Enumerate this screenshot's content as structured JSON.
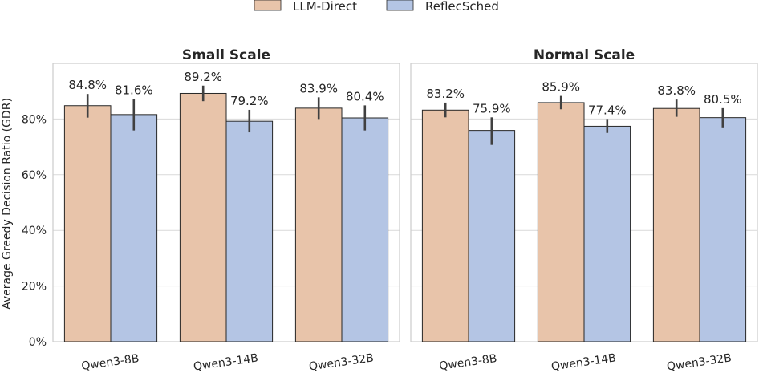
{
  "legend": {
    "items": [
      {
        "label": "LLM-Direct",
        "color": "#e8c4aa"
      },
      {
        "label": "ReflecSched",
        "color": "#b4c5e4"
      }
    ]
  },
  "chart_data": [
    {
      "type": "bar",
      "title": "Small Scale",
      "xlabel": "",
      "ylabel": "Average Greedy Decision Ratio (GDR)",
      "ylim": [
        0,
        100
      ],
      "yticks": [
        0,
        20,
        40,
        60,
        80
      ],
      "ytick_labels": [
        "0%",
        "20%",
        "40%",
        "60%",
        "80%"
      ],
      "grid": true,
      "legend_position": "top-center",
      "categories": [
        "Qwen3-8B",
        "Qwen3-14B",
        "Qwen3-32B"
      ],
      "series": [
        {
          "name": "LLM-Direct",
          "values": [
            84.8,
            89.2,
            83.9
          ],
          "err_low": [
            80.5,
            86.4,
            80.0
          ],
          "err_high": [
            89.0,
            92.0,
            87.8
          ],
          "labels": [
            "84.8%",
            "89.2%",
            "83.9%"
          ]
        },
        {
          "name": "ReflecSched",
          "values": [
            81.6,
            79.2,
            80.4
          ],
          "err_low": [
            75.9,
            75.2,
            75.9
          ],
          "err_high": [
            87.2,
            83.3,
            84.9
          ],
          "labels": [
            "81.6%",
            "79.2%",
            "80.4%"
          ]
        }
      ]
    },
    {
      "type": "bar",
      "title": "Normal Scale",
      "xlabel": "",
      "ylabel": "",
      "ylim": [
        0,
        100
      ],
      "yticks": [
        0,
        20,
        40,
        60,
        80
      ],
      "grid": true,
      "categories": [
        "Qwen3-8B",
        "Qwen3-14B",
        "Qwen3-32B"
      ],
      "series": [
        {
          "name": "LLM-Direct",
          "values": [
            83.2,
            85.9,
            83.8
          ],
          "err_low": [
            80.6,
            83.5,
            80.8
          ],
          "err_high": [
            85.9,
            88.3,
            87.0
          ],
          "labels": [
            "83.2%",
            "85.9%",
            "83.8%"
          ]
        },
        {
          "name": "ReflecSched",
          "values": [
            75.9,
            77.4,
            80.5
          ],
          "err_low": [
            70.7,
            75.0,
            77.0
          ],
          "err_high": [
            80.6,
            80.0,
            83.9
          ],
          "labels": [
            "75.9%",
            "77.4%",
            "80.5%"
          ]
        }
      ]
    }
  ]
}
